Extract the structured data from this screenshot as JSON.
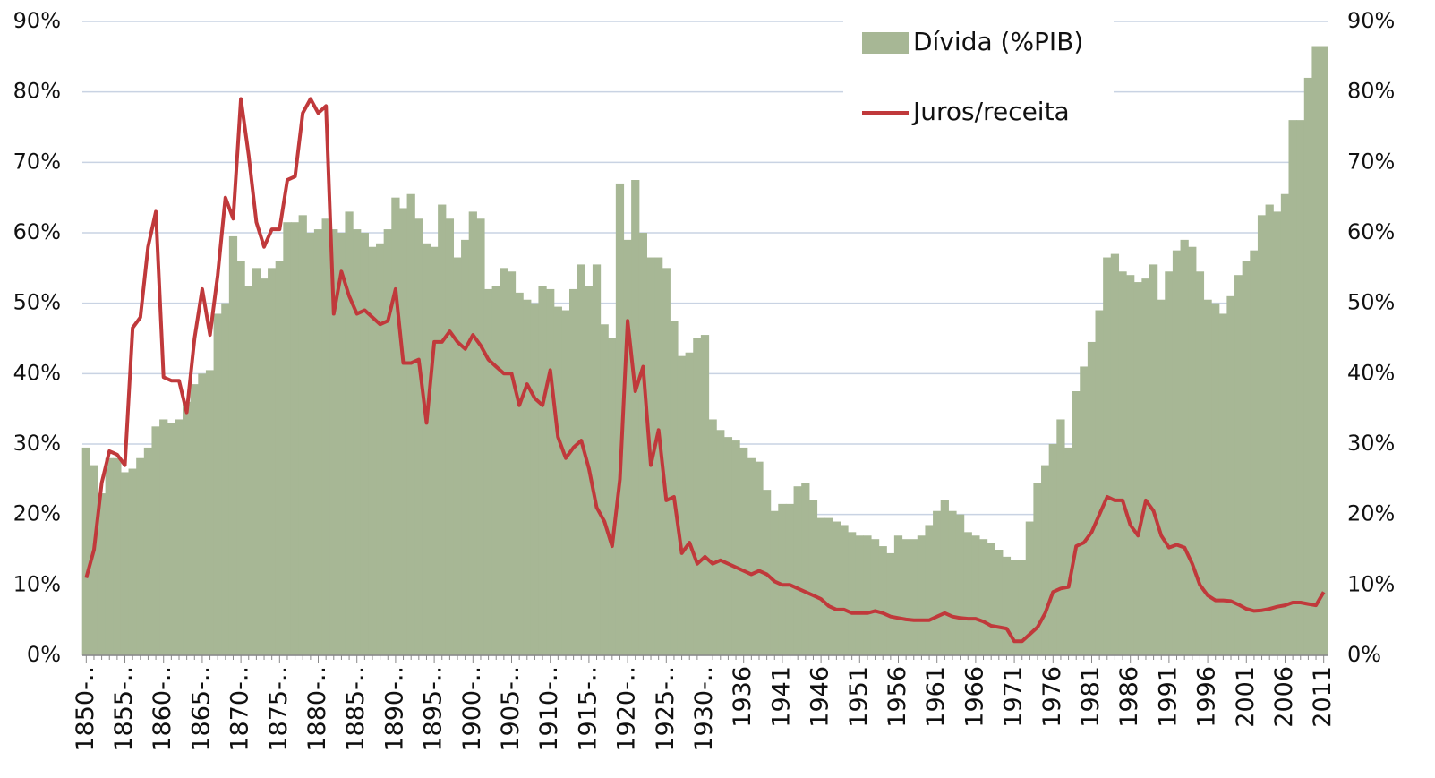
{
  "chart_data": {
    "type": "bar-line",
    "categories": [
      "1850-..",
      null,
      null,
      null,
      null,
      "1855-..",
      null,
      null,
      null,
      null,
      "1860-..",
      null,
      null,
      null,
      null,
      "1865-..",
      null,
      null,
      null,
      null,
      "1870-..",
      null,
      null,
      null,
      null,
      "1875-..",
      null,
      null,
      null,
      null,
      "1880-..",
      null,
      null,
      null,
      null,
      "1885-..",
      null,
      null,
      null,
      null,
      "1890-..",
      null,
      null,
      null,
      null,
      "1895-..",
      null,
      null,
      null,
      null,
      "1900-..",
      null,
      null,
      null,
      null,
      "1905-..",
      null,
      null,
      null,
      null,
      "1910-..",
      null,
      null,
      null,
      null,
      "1915-..",
      null,
      null,
      null,
      null,
      "1920-..",
      null,
      null,
      null,
      null,
      "1925-..",
      null,
      null,
      null,
      null,
      "1930-..",
      null,
      null,
      null,
      null,
      "1936",
      null,
      null,
      null,
      null,
      "1941",
      null,
      null,
      null,
      null,
      "1946",
      null,
      null,
      null,
      null,
      "1951",
      null,
      null,
      null,
      null,
      "1956",
      null,
      null,
      null,
      null,
      "1961",
      null,
      null,
      null,
      null,
      "1966",
      null,
      null,
      null,
      null,
      "1971",
      null,
      null,
      null,
      null,
      "1976",
      null,
      null,
      null,
      null,
      "1981",
      null,
      null,
      null,
      null,
      "1986",
      null,
      null,
      null,
      null,
      "1991",
      null,
      null,
      null,
      null,
      "1996",
      null,
      null,
      null,
      null,
      "2001",
      null,
      null,
      null,
      null,
      "2006",
      null,
      null,
      null,
      null,
      "2011"
    ],
    "series": [
      {
        "name": "Dívida (%PIB)",
        "kind": "area",
        "color": "#a7b795",
        "values": [
          29.5,
          27,
          23,
          28,
          28,
          26,
          26.5,
          28,
          29.5,
          32.5,
          33.5,
          33,
          33.5,
          36,
          38.5,
          40,
          40.5,
          48.5,
          50,
          59.5,
          56,
          52.5,
          55,
          53.5,
          55,
          56,
          61.5,
          61.5,
          62.5,
          60,
          60.5,
          62,
          60.5,
          60,
          63,
          60.5,
          60,
          58,
          58.5,
          60.5,
          65,
          63.5,
          65.5,
          62,
          58.5,
          58,
          64,
          62,
          56.5,
          59,
          63,
          62,
          52,
          52.5,
          55,
          54.5,
          51.5,
          50.5,
          50,
          52.5,
          52,
          49.5,
          49,
          52,
          55.5,
          52.5,
          55.5,
          47,
          45,
          67,
          59,
          67.5,
          60,
          56.5,
          56.5,
          55,
          47.5,
          42.5,
          43,
          45,
          45.5,
          33.5,
          32,
          31,
          30.5,
          29.5,
          28,
          27.5,
          23.5,
          20.5,
          21.5,
          21.5,
          24,
          24.5,
          22,
          19.5,
          19.5,
          19,
          18.5,
          17.5,
          17,
          17,
          16.5,
          15.5,
          14.5,
          17,
          16.5,
          16.5,
          17,
          18.5,
          20.5,
          22,
          20.5,
          20,
          17.5,
          17,
          16.5,
          16,
          15,
          14,
          13.5,
          13.5,
          19,
          24.5,
          27,
          30,
          33.5,
          29.5,
          37.5,
          41,
          44.5,
          49,
          56.5,
          57,
          54.5,
          54,
          53,
          53.5,
          55.5,
          50.5,
          54.5,
          57.5,
          59,
          58,
          54.5,
          50.5,
          50,
          48.5,
          51,
          54,
          56,
          57.5,
          62.5,
          64,
          63,
          65.5,
          76,
          76,
          82,
          86.5,
          86.5
        ]
      },
      {
        "name": "Juros/receita",
        "kind": "line",
        "axis": "y2",
        "color": "#c0393b",
        "values": [
          11,
          15,
          24.5,
          29,
          28.5,
          27,
          46.5,
          48,
          58,
          63,
          39.5,
          39,
          39,
          34.5,
          45,
          52,
          45.5,
          54,
          65,
          62,
          79,
          71,
          61.5,
          58,
          60.5,
          60.5,
          67.5,
          68,
          77,
          79,
          77,
          78,
          48.5,
          54.5,
          51,
          48.5,
          49,
          48,
          47,
          47.5,
          52,
          41.5,
          41.5,
          42,
          33,
          44.5,
          44.5,
          46,
          44.5,
          43.5,
          45.5,
          44,
          42,
          41,
          40,
          40,
          35.5,
          38.5,
          36.5,
          35.5,
          40.5,
          31,
          28,
          29.5,
          30.5,
          26.5,
          21,
          19,
          15.5,
          25,
          47.5,
          37.5,
          41,
          27,
          32,
          22,
          22.5,
          14.5,
          16,
          13,
          14,
          13,
          13.5,
          13,
          12.5,
          12,
          11.5,
          12,
          11.5,
          10.5,
          10,
          10,
          9.5,
          9,
          8.5,
          8,
          7,
          6.5,
          6.5,
          6,
          6,
          6,
          6.3,
          6,
          5.5,
          5.3,
          5.1,
          5,
          5,
          5,
          5.5,
          6,
          5.5,
          5.3,
          5.2,
          5.2,
          4.8,
          4.2,
          4,
          3.8,
          2,
          2,
          3,
          4,
          6,
          9,
          9.5,
          9.7,
          15.5,
          16,
          17.5,
          20,
          22.5,
          22,
          22,
          18.5,
          17,
          22,
          20.5,
          17,
          15.3,
          15.7,
          15.3,
          13,
          10,
          8.5,
          7.8,
          7.8,
          7.7,
          7.2,
          6.6,
          6.3,
          6.4,
          6.6,
          6.9,
          7.1,
          7.5,
          7.5,
          7.3,
          7.1,
          9
        ]
      }
    ],
    "ylim": [
      0,
      90
    ],
    "yticks": [
      {
        "value": 0,
        "label": "0%"
      },
      {
        "value": 10,
        "label": "10%"
      },
      {
        "value": 20,
        "label": "20%"
      },
      {
        "value": 30,
        "label": "30%"
      },
      {
        "value": 40,
        "label": "40%"
      },
      {
        "value": 50,
        "label": "50%"
      },
      {
        "value": 60,
        "label": "60%"
      },
      {
        "value": 70,
        "label": "70%"
      },
      {
        "value": 80,
        "label": "80%"
      },
      {
        "value": 90,
        "label": "90%"
      }
    ],
    "y2lim": [
      0,
      90
    ],
    "y2ticks": [
      {
        "value": 0,
        "label": "0%"
      },
      {
        "value": 10,
        "label": "10%"
      },
      {
        "value": 20,
        "label": "20%"
      },
      {
        "value": 30,
        "label": "30%"
      },
      {
        "value": 40,
        "label": "40%"
      },
      {
        "value": 50,
        "label": "50%"
      },
      {
        "value": 60,
        "label": "60%"
      },
      {
        "value": 70,
        "label": "70%"
      },
      {
        "value": 80,
        "label": "80%"
      },
      {
        "value": 90,
        "label": "90%"
      }
    ],
    "grid": true,
    "legend": "top-right"
  }
}
